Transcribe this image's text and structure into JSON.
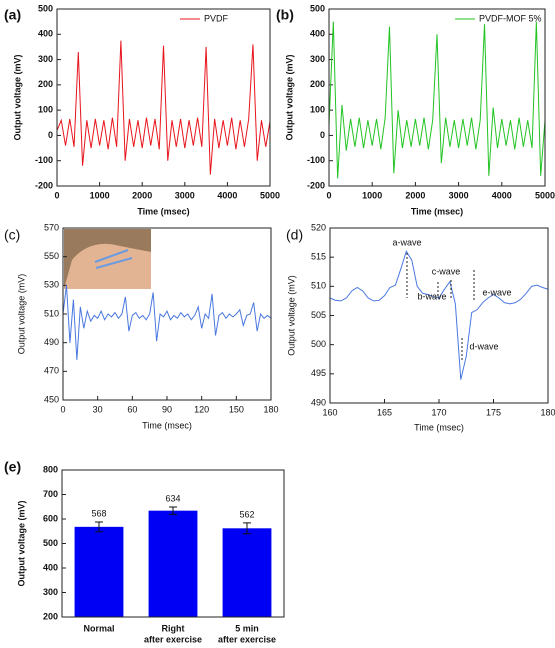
{
  "chart_data": [
    {
      "type": "line",
      "label": "(a)",
      "xlabel": "Time (msec)",
      "ylabel": "Output voltage (mV)",
      "xlim": [
        0,
        5000
      ],
      "xticks": [
        0,
        1000,
        2000,
        3000,
        4000,
        5000
      ],
      "ylim": [
        -200,
        500
      ],
      "yticks": [
        -200,
        -100,
        0,
        100,
        200,
        300,
        400,
        500
      ],
      "x": [
        0,
        100,
        200,
        300,
        400,
        500,
        600,
        700,
        800,
        900,
        1000,
        1100,
        1200,
        1300,
        1400,
        1500,
        1600,
        1700,
        1800,
        1900,
        2000,
        2100,
        2200,
        2300,
        2400,
        2500,
        2600,
        2700,
        2800,
        2900,
        3000,
        3100,
        3200,
        3300,
        3400,
        3500,
        3600,
        3700,
        3800,
        3900,
        4000,
        4100,
        4200,
        4300,
        4400,
        4500,
        4600,
        4700,
        4800,
        4900,
        5000
      ],
      "series": [
        {
          "name": "PVDF",
          "color": "#e8141c",
          "values": [
            20,
            60,
            -40,
            65,
            -45,
            330,
            -120,
            60,
            -50,
            65,
            -40,
            60,
            -55,
            70,
            -45,
            375,
            -100,
            65,
            -45,
            60,
            -50,
            70,
            -40,
            65,
            -55,
            355,
            -100,
            60,
            -45,
            65,
            -50,
            60,
            -40,
            70,
            -45,
            350,
            -155,
            65,
            -50,
            60,
            -40,
            70,
            -55,
            60,
            -45,
            65,
            360,
            -100,
            60,
            -45,
            55
          ]
        }
      ]
    },
    {
      "type": "line",
      "label": "(b)",
      "xlabel": "Time (msec)",
      "ylabel": "Output voltage (mV)",
      "xlim": [
        0,
        5000
      ],
      "xticks": [
        0,
        1000,
        2000,
        3000,
        4000,
        5000
      ],
      "ylim": [
        -200,
        500
      ],
      "yticks": [
        -200,
        -100,
        0,
        100,
        200,
        300,
        400,
        500
      ],
      "x": [
        0,
        100,
        200,
        300,
        400,
        500,
        600,
        700,
        800,
        900,
        1000,
        1100,
        1200,
        1300,
        1400,
        1500,
        1600,
        1700,
        1800,
        1900,
        2000,
        2100,
        2200,
        2300,
        2400,
        2500,
        2600,
        2700,
        2800,
        2900,
        3000,
        3100,
        3200,
        3300,
        3400,
        3500,
        3600,
        3700,
        3800,
        3900,
        4000,
        4100,
        4200,
        4300,
        4400,
        4500,
        4600,
        4700,
        4800,
        4900,
        5000
      ],
      "series": [
        {
          "name": "PVDF-MOF 5%",
          "color": "#22c422",
          "values": [
            40,
            450,
            -170,
            120,
            -60,
            65,
            -45,
            70,
            -50,
            60,
            -40,
            65,
            -55,
            70,
            430,
            -150,
            100,
            -50,
            60,
            -45,
            65,
            -40,
            70,
            -55,
            60,
            400,
            -110,
            70,
            -45,
            60,
            -50,
            65,
            -40,
            70,
            -55,
            60,
            440,
            -160,
            110,
            -50,
            65,
            -40,
            60,
            -55,
            70,
            -45,
            60,
            -50,
            450,
            -160,
            60
          ]
        }
      ]
    },
    {
      "type": "line",
      "label": "(c)",
      "xlabel": "Time (msec)",
      "ylabel": "Output voltage (mV)",
      "xlim": [
        0,
        180
      ],
      "xticks": [
        0,
        30,
        60,
        90,
        120,
        150,
        180
      ],
      "ylim": [
        450,
        570
      ],
      "yticks": [
        450,
        470,
        490,
        510,
        530,
        550,
        570
      ],
      "x": [
        0,
        3,
        6,
        9,
        12,
        15,
        18,
        21,
        24,
        27,
        30,
        33,
        36,
        39,
        42,
        45,
        48,
        51,
        54,
        57,
        60,
        63,
        66,
        69,
        72,
        75,
        78,
        81,
        84,
        87,
        90,
        93,
        96,
        99,
        102,
        105,
        108,
        111,
        114,
        117,
        120,
        123,
        126,
        129,
        132,
        135,
        138,
        141,
        144,
        147,
        150,
        153,
        156,
        159,
        162,
        165,
        168,
        171,
        174,
        177,
        180
      ],
      "series": [
        {
          "color": "#4a78e0",
          "values": [
            510,
            530,
            490,
            520,
            478,
            515,
            500,
            512,
            505,
            509,
            507,
            512,
            506,
            510,
            508,
            511,
            507,
            510,
            522,
            498,
            509,
            511,
            507,
            509,
            506,
            510,
            525,
            491,
            510,
            508,
            512,
            506,
            509,
            507,
            511,
            508,
            510,
            506,
            509,
            515,
            500,
            510,
            507,
            524,
            495,
            509,
            511,
            507,
            510,
            508,
            510,
            513,
            502,
            509,
            510,
            518,
            498,
            510,
            507,
            509,
            507
          ]
        }
      ]
    },
    {
      "type": "line",
      "label": "(d)",
      "xlabel": "Time (msec)",
      "ylabel": "Output voltage (mV)",
      "xlim": [
        160,
        180
      ],
      "xticks": [
        160,
        165,
        170,
        175,
        180
      ],
      "ylim": [
        490,
        520
      ],
      "yticks": [
        490,
        495,
        500,
        505,
        510,
        515,
        520
      ],
      "annotations": [
        "a-wave",
        "c-wave",
        "b-wave",
        "e-wave",
        "d-wave"
      ],
      "x": [
        160,
        160.5,
        161,
        161.5,
        162,
        162.5,
        163,
        163.5,
        164,
        164.5,
        165,
        165.5,
        166,
        166.5,
        167,
        167.5,
        168,
        168.5,
        169,
        169.5,
        170,
        170.5,
        171,
        171.5,
        172,
        172.5,
        173,
        173.5,
        174,
        174.5,
        175,
        175.5,
        176,
        176.5,
        177,
        177.5,
        178,
        178.5,
        179,
        179.5,
        180
      ],
      "series": [
        {
          "color": "#4a78e0",
          "values": [
            508.0,
            507.6,
            507.5,
            508.0,
            509.2,
            509.8,
            509.2,
            508.0,
            507.5,
            507.6,
            508.4,
            509.8,
            510.2,
            513.0,
            516.0,
            514.5,
            510.0,
            508.8,
            508.6,
            508.2,
            508.0,
            509.5,
            510.8,
            507.0,
            494.0,
            498.0,
            505.5,
            506.0,
            507.2,
            508.0,
            508.6,
            508.0,
            507.2,
            507.0,
            507.2,
            507.8,
            508.8,
            510.0,
            510.2,
            509.8,
            509.5
          ]
        }
      ]
    },
    {
      "type": "bar",
      "label": "(e)",
      "ylabel": "Output voltage (mV)",
      "categories": [
        [
          "Normal"
        ],
        [
          "Right",
          "after exercise"
        ],
        [
          "5 min",
          "after exercise"
        ]
      ],
      "values": [
        568,
        634,
        562
      ],
      "errors": [
        20,
        15,
        22
      ],
      "color": "#0000f5",
      "ylim": [
        200,
        800
      ],
      "yticks": [
        200,
        300,
        400,
        500,
        600,
        700,
        800
      ]
    }
  ]
}
